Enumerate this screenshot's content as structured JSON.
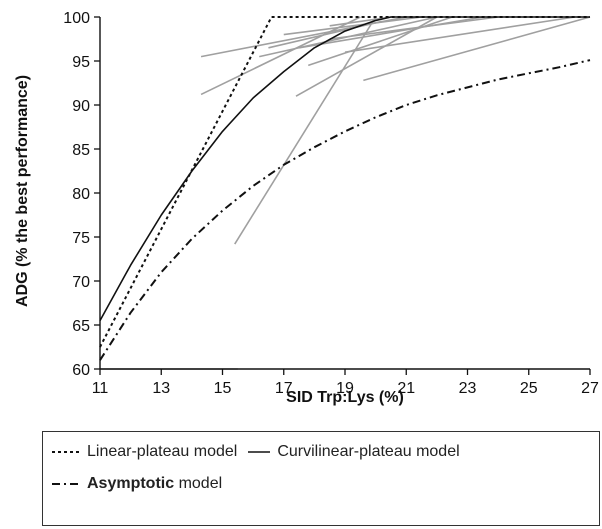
{
  "chart_data": {
    "type": "line",
    "xlabel": "SID Trp:Lys (%)",
    "ylabel": "ADG (% the best performance)",
    "xlim": [
      11,
      27
    ],
    "ylim": [
      60,
      100
    ],
    "xticks": [
      "11",
      "13",
      "15",
      "17",
      "19",
      "21",
      "23",
      "25",
      "27"
    ],
    "yticks": [
      "60",
      "65",
      "70",
      "75",
      "80",
      "85",
      "90",
      "95",
      "100"
    ],
    "grid": false,
    "legend_position": "bottom",
    "series": [
      {
        "name": "Linear-plateau model",
        "style": "dotted",
        "color": "#111111",
        "x": [
          11,
          16.6,
          27
        ],
        "y": [
          62.5,
          100,
          100
        ]
      },
      {
        "name": "Curvilinear-plateau model",
        "style": "solid",
        "color": "#111111",
        "x": [
          11,
          12,
          13,
          14,
          15,
          16,
          17,
          18,
          19,
          20,
          20.5,
          27
        ],
        "y": [
          65.5,
          71.8,
          77.5,
          82.5,
          87,
          90.8,
          93.8,
          96.5,
          98.4,
          99.6,
          100,
          100
        ]
      },
      {
        "name": "Asymptotic model",
        "label_plain": "",
        "label_bold": "Asymptotic",
        "label_suffix": "model",
        "style": "dashdot",
        "color": "#111111",
        "x": [
          11,
          12,
          13,
          14,
          15,
          16,
          17,
          18,
          19,
          20,
          21,
          22,
          23,
          24,
          25,
          26,
          27
        ],
        "y": [
          61,
          66.4,
          71,
          74.8,
          78,
          80.8,
          83.2,
          85.2,
          87,
          88.6,
          90,
          91.1,
          92,
          92.9,
          93.6,
          94.3,
          95.1
        ]
      }
    ],
    "individual_studies": [
      {
        "x": [
          15.4,
          20
        ],
        "y": [
          74.2,
          100
        ]
      },
      {
        "x": [
          17.4,
          22
        ],
        "y": [
          91,
          100
        ]
      },
      {
        "x": [
          19.6,
          27
        ],
        "y": [
          92.8,
          100
        ]
      },
      {
        "x": [
          14.3,
          21
        ],
        "y": [
          95.5,
          100
        ]
      },
      {
        "x": [
          14.3,
          19.5
        ],
        "y": [
          91.2,
          100
        ]
      },
      {
        "x": [
          16.2,
          22
        ],
        "y": [
          95.5,
          100
        ]
      },
      {
        "x": [
          16.5,
          20.2
        ],
        "y": [
          96.5,
          99.5
        ]
      },
      {
        "x": [
          17,
          21.5
        ],
        "y": [
          98,
          100
        ]
      },
      {
        "x": [
          17.5,
          23.5
        ],
        "y": [
          96.5,
          100
        ]
      },
      {
        "x": [
          18.5,
          24
        ],
        "y": [
          97.5,
          100
        ]
      },
      {
        "x": [
          19,
          26.5
        ],
        "y": [
          96,
          100
        ]
      },
      {
        "x": [
          17.8,
          22.5
        ],
        "y": [
          94.5,
          100
        ]
      },
      {
        "x": [
          18.5,
          20.5
        ],
        "y": [
          99,
          100
        ]
      },
      {
        "x": [
          11,
          15.5
        ],
        "y": [
          60,
          60
        ]
      }
    ]
  },
  "legend": {
    "row1": [
      {
        "key": "linear",
        "label": "Linear-plateau model"
      },
      {
        "key": "curvilinear",
        "label": "Curvilinear-plateau model"
      }
    ],
    "row2": {
      "key": "asymptotic",
      "bold": "Asymptotic",
      "suffix": " model"
    }
  },
  "colors": {
    "study_line": "#a0a0a0",
    "model_line": "#111111"
  }
}
